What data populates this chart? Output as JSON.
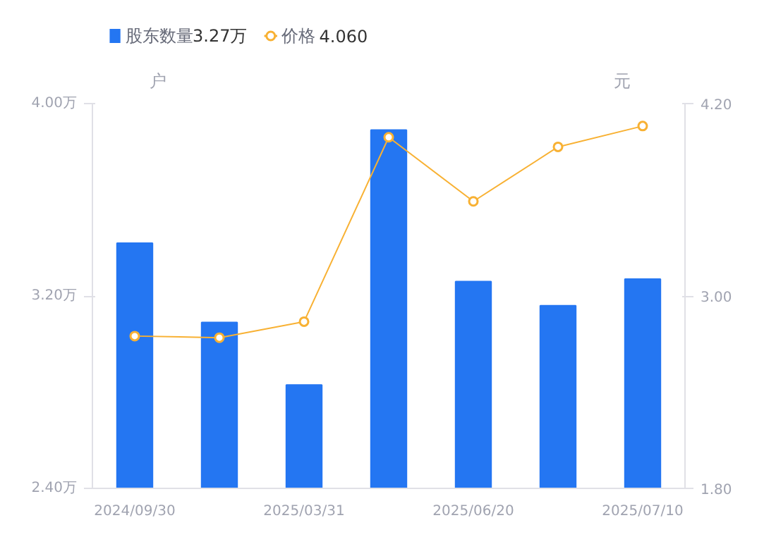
{
  "chart_data": {
    "type": "bar",
    "categories": [
      "2024/09/30",
      null,
      "2025/03/31",
      null,
      "2025/06/20",
      null,
      "2025/07/10"
    ],
    "series": [
      {
        "name": "股东数量",
        "color": "#2476f2",
        "values": [
          3.42,
          3.09,
          2.83,
          3.89,
          3.26,
          3.16,
          3.27
        ]
      },
      {
        "name": "价格",
        "type": "line",
        "axis": "y2",
        "color": "#f8b133",
        "marker": "circle",
        "values": [
          2.75,
          2.74,
          2.84,
          3.99,
          3.59,
          3.93,
          4.06
        ]
      }
    ],
    "ylabel": "户",
    "y2label": "元",
    "ylim": [
      2.4,
      4.0
    ],
    "yticks": [
      {
        "value": 2.4,
        "label": "2.40万"
      },
      {
        "value": 3.2,
        "label": "3.20万"
      },
      {
        "value": 4.0,
        "label": "4.00万"
      }
    ],
    "y2lim": [
      1.8,
      4.2
    ],
    "y2ticks": [
      {
        "value": 1.8,
        "label": "1.80"
      },
      {
        "value": 3.0,
        "label": "3.00"
      },
      {
        "value": 4.2,
        "label": "4.20"
      }
    ],
    "annotations": [
      "3.27万",
      "4.060"
    ],
    "legend": "top left",
    "grid": false
  }
}
